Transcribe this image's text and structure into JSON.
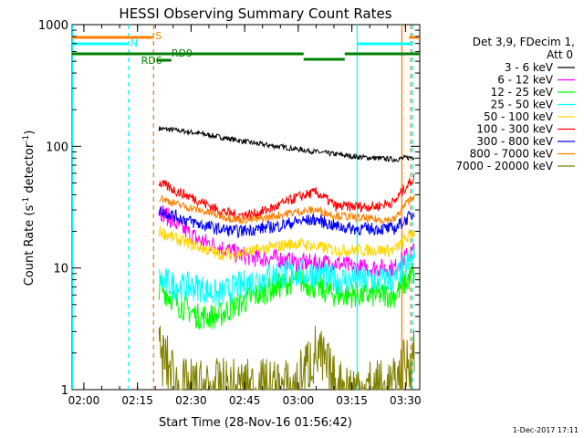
{
  "chart_data": {
    "type": "line",
    "title": "HESSI Observing Summary Count Rates",
    "xlabel": "Start Time (28-Nov-16 01:56:42)",
    "ylabel_main": "Count Rate (s",
    "ylabel_sup1": "-1",
    "ylabel_mid": " detector",
    "ylabel_sup2": "-1",
    "ylabel_end": ")",
    "yscale": "log",
    "ylim": [
      1,
      1000
    ],
    "xlim": [
      "01:56:42",
      "03:34:00"
    ],
    "x_ticks": [
      "02:00",
      "02:15",
      "02:30",
      "02:45",
      "03:00",
      "03:15",
      "03:30"
    ],
    "y_ticks": [
      "1",
      "10",
      "100",
      "1000"
    ],
    "legend": {
      "header1": "Det 3,9, FDecim 1,",
      "header2": "Att 0",
      "position": "right"
    },
    "series": [
      {
        "name": "3 - 6 keV",
        "color": "#000000",
        "values": [
          140,
          135,
          128,
          120,
          112,
          105,
          100,
          95,
          90,
          86,
          82,
          80,
          78,
          82
        ]
      },
      {
        "name": "6 - 12 keV",
        "color": "#ff00ff",
        "values": [
          30,
          22,
          17,
          15,
          13,
          12,
          12,
          11,
          11,
          11,
          10,
          10,
          10,
          14
        ]
      },
      {
        "name": "12 - 25 keV",
        "color": "#00ff00",
        "values": [
          7,
          5,
          4,
          4,
          5,
          6,
          7,
          8,
          7,
          6,
          6,
          6,
          6,
          9
        ]
      },
      {
        "name": "25 - 50 keV",
        "color": "#00ffff",
        "values": [
          8,
          7,
          7,
          6,
          7,
          8,
          9,
          9,
          9,
          8,
          8,
          8,
          8,
          12
        ]
      },
      {
        "name": "50 - 100 keV",
        "color": "#ffd700",
        "values": [
          20,
          17,
          15,
          13,
          13,
          14,
          15,
          16,
          15,
          14,
          14,
          14,
          14,
          20
        ]
      },
      {
        "name": "100 - 300 keV",
        "color": "#ff0000",
        "values": [
          50,
          42,
          36,
          30,
          27,
          28,
          32,
          38,
          42,
          32,
          32,
          32,
          35,
          55
        ]
      },
      {
        "name": "300 - 800 keV",
        "color": "#0000ff",
        "values": [
          30,
          26,
          23,
          21,
          20,
          21,
          22,
          24,
          25,
          22,
          21,
          21,
          21,
          28
        ]
      },
      {
        "name": "800 - 7000 keV",
        "color": "#ff8000",
        "values": [
          38,
          33,
          30,
          27,
          25,
          25,
          27,
          29,
          30,
          27,
          26,
          25,
          25,
          40
        ]
      },
      {
        "name": "7000 - 20000 keV",
        "color": "#808000",
        "values": [
          2,
          1,
          1,
          1,
          1,
          1,
          1,
          1,
          2,
          1,
          1,
          1,
          1,
          2
        ]
      }
    ],
    "flags": {
      "saa_label": "S",
      "night_label": "N",
      "rd6_label": "RD6",
      "rd9_label": "RD9"
    },
    "footer_date": "1-Dec-2017 17:11"
  }
}
